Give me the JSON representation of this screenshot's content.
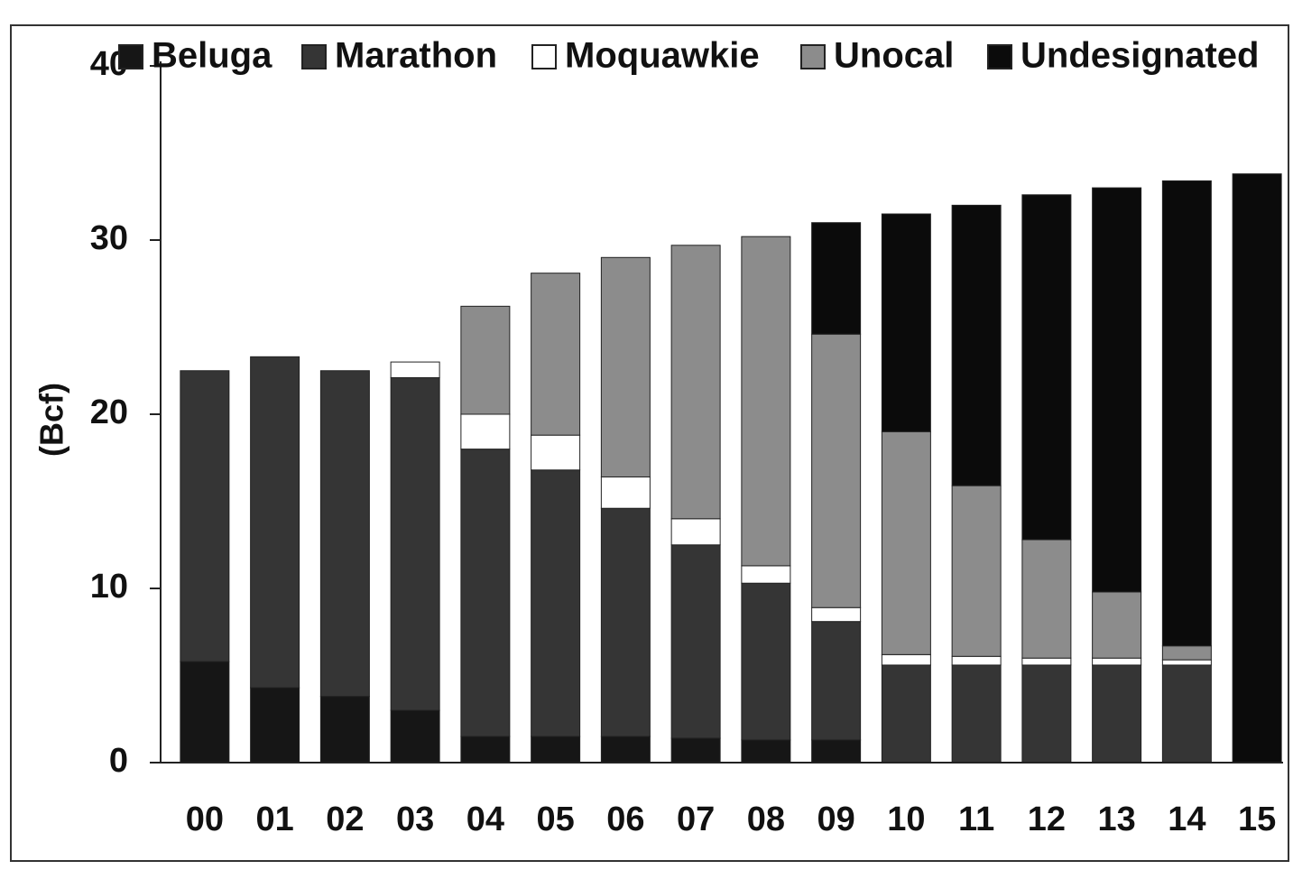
{
  "chart_data": {
    "type": "stacked_bar",
    "y_label": "(Bcf)",
    "categories": [
      "00",
      "01",
      "02",
      "03",
      "04",
      "05",
      "06",
      "07",
      "08",
      "09",
      "10",
      "11",
      "12",
      "13",
      "14",
      "15"
    ],
    "series": [
      {
        "name": "Beluga",
        "color": "#161616",
        "values": [
          5.8,
          4.3,
          3.8,
          3.0,
          1.5,
          1.5,
          1.5,
          1.4,
          1.3,
          1.3,
          0,
          0,
          0,
          0,
          0,
          0
        ]
      },
      {
        "name": "Marathon",
        "color": "#353535",
        "values": [
          16.7,
          19.0,
          18.7,
          19.1,
          16.5,
          15.3,
          13.1,
          11.1,
          9.0,
          6.8,
          5.6,
          5.6,
          5.6,
          5.6,
          5.6,
          0
        ]
      },
      {
        "name": "Moquawkie",
        "color": "#ffffff",
        "values": [
          0,
          0,
          0,
          0.9,
          2.0,
          2.0,
          1.8,
          1.5,
          1.0,
          0.8,
          0.6,
          0.5,
          0.4,
          0.4,
          0.3,
          0
        ]
      },
      {
        "name": "Unocal",
        "color": "#8c8c8c",
        "values": [
          0,
          0,
          0,
          0,
          6.2,
          9.3,
          12.6,
          15.7,
          18.9,
          15.7,
          12.8,
          9.8,
          6.8,
          3.8,
          0.8,
          0
        ]
      },
      {
        "name": "Undesignated",
        "color": "#0b0b0b",
        "values": [
          0,
          0,
          0,
          0,
          0,
          0,
          0,
          0,
          0,
          6.4,
          12.5,
          16.1,
          19.8,
          23.2,
          26.7,
          33.8
        ]
      }
    ],
    "ylim": [
      0,
      40
    ],
    "yticks": [
      0,
      10,
      20,
      30,
      40
    ],
    "legend": "top"
  }
}
